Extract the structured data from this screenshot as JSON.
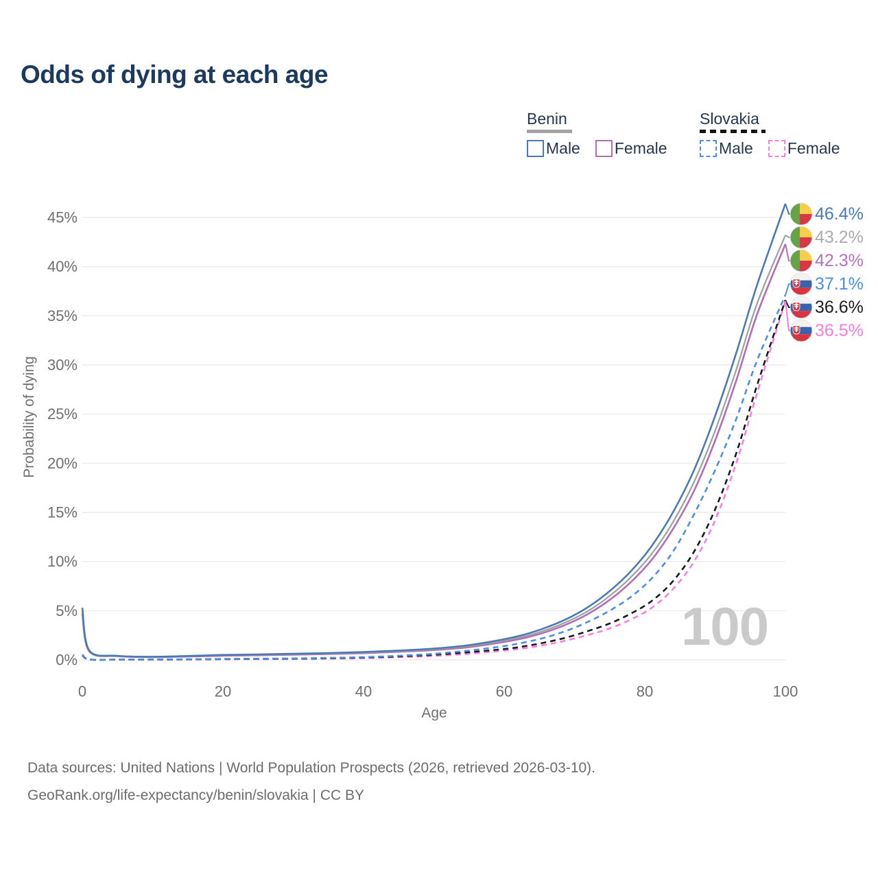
{
  "title": "Odds of dying at each age",
  "watermark": "100",
  "legend": {
    "groups": [
      {
        "country": "Benin",
        "line_style": "solid",
        "underline_color": "#a3a3a3",
        "items": [
          {
            "label": "Male",
            "color": "#4a7ab5"
          },
          {
            "label": "Female",
            "color": "#b26db5"
          }
        ]
      },
      {
        "country": "Slovakia",
        "line_style": "dashed",
        "underline_color": "#141414",
        "items": [
          {
            "label": "Male",
            "color": "#4a90e8"
          },
          {
            "label": "Female",
            "color": "#fa7de3"
          }
        ]
      }
    ]
  },
  "chart_data": {
    "type": "line",
    "title": "Odds of dying at each age",
    "xlabel": "Age",
    "ylabel": "Probability of dying",
    "xlim": [
      0,
      100
    ],
    "ylim": [
      0,
      47
    ],
    "xticks": [
      0,
      20,
      40,
      60,
      80,
      100
    ],
    "yticks": [
      "0%",
      "5%",
      "10%",
      "15%",
      "20%",
      "25%",
      "30%",
      "35%",
      "40%",
      "45%"
    ],
    "grid": "horizontal",
    "legend_position": "top-right",
    "x_ages": [
      0,
      1,
      5,
      10,
      15,
      20,
      25,
      30,
      35,
      40,
      45,
      50,
      55,
      60,
      63,
      66,
      69,
      72,
      75,
      78,
      81,
      84,
      87,
      90,
      93,
      96,
      100
    ],
    "series": [
      {
        "name": "Benin Male",
        "country": "Benin",
        "sex": "male",
        "color": "#4a7ab5",
        "dashed": false,
        "flag": "benin",
        "end_label": "46.4%",
        "label_color": "#4a7ab5",
        "values": [
          5.3,
          0.95,
          0.42,
          0.32,
          0.4,
          0.5,
          0.56,
          0.62,
          0.7,
          0.8,
          0.95,
          1.15,
          1.5,
          2.1,
          2.6,
          3.3,
          4.2,
          5.4,
          7.0,
          9.0,
          11.6,
          15.0,
          19.3,
          24.8,
          31.2,
          38.2,
          46.4
        ]
      },
      {
        "name": "Benin Both sexes",
        "country": "Benin",
        "sex": "both",
        "color": "#9e9e9e",
        "dashed": false,
        "flag": "benin",
        "end_label": "43.2%",
        "label_color": "#ababab",
        "values": [
          5.0,
          0.9,
          0.4,
          0.3,
          0.37,
          0.46,
          0.52,
          0.57,
          0.64,
          0.74,
          0.88,
          1.07,
          1.4,
          1.95,
          2.4,
          3.05,
          3.9,
          5.0,
          6.5,
          8.4,
          10.8,
          14.0,
          18.1,
          23.3,
          29.5,
          36.3,
          43.2
        ]
      },
      {
        "name": "Benin Female",
        "country": "Benin",
        "sex": "female",
        "color": "#b26db5",
        "dashed": false,
        "flag": "benin",
        "end_label": "42.3%",
        "label_color": "#b671bd",
        "values": [
          4.7,
          0.85,
          0.38,
          0.28,
          0.34,
          0.42,
          0.47,
          0.52,
          0.59,
          0.68,
          0.82,
          1.0,
          1.3,
          1.82,
          2.25,
          2.85,
          3.65,
          4.7,
          6.1,
          7.9,
          10.2,
          13.3,
          17.2,
          22.3,
          28.4,
          35.2,
          42.3
        ]
      },
      {
        "name": "Slovakia Male",
        "country": "Slovakia",
        "sex": "male",
        "color": "#4a90e8",
        "dashed": true,
        "flag": "slovakia",
        "end_label": "37.1%",
        "label_color": "#4a90e8",
        "values": [
          0.55,
          0.045,
          0.03,
          0.03,
          0.06,
          0.1,
          0.12,
          0.15,
          0.2,
          0.28,
          0.42,
          0.62,
          0.95,
          1.4,
          1.8,
          2.3,
          3.0,
          3.9,
          5.0,
          6.4,
          8.3,
          11.0,
          14.8,
          19.3,
          24.5,
          30.5,
          37.1
        ]
      },
      {
        "name": "Slovakia Both sexes",
        "country": "Slovakia",
        "sex": "both",
        "color": "#1a1a1a",
        "dashed": true,
        "flag": "slovakia",
        "end_label": "36.6%",
        "label_color": "#1d1d1d",
        "values": [
          0.5,
          0.04,
          0.025,
          0.025,
          0.05,
          0.08,
          0.1,
          0.12,
          0.16,
          0.24,
          0.35,
          0.52,
          0.78,
          1.1,
          1.4,
          1.8,
          2.3,
          2.95,
          3.7,
          4.7,
          6.0,
          8.0,
          11.0,
          15.3,
          21.0,
          28.0,
          36.6
        ]
      },
      {
        "name": "Slovakia Female",
        "country": "Slovakia",
        "sex": "female",
        "color": "#fa7de3",
        "dashed": true,
        "flag": "slovakia",
        "end_label": "36.5%",
        "label_color": "#fb7ae1",
        "values": [
          0.45,
          0.035,
          0.02,
          0.02,
          0.04,
          0.06,
          0.08,
          0.1,
          0.13,
          0.18,
          0.27,
          0.4,
          0.62,
          0.95,
          1.2,
          1.55,
          2.0,
          2.55,
          3.2,
          4.1,
          5.3,
          7.2,
          10.0,
          14.2,
          20.0,
          27.2,
          36.5
        ]
      }
    ],
    "flag_colors": {
      "benin_green": "#64a346",
      "benin_yellow": "#f6ce4b",
      "benin_red": "#d63848",
      "slovakia_white": "#f2f2f2",
      "slovakia_blue": "#3a63ad",
      "slovakia_red": "#d6363f"
    }
  },
  "footer": {
    "line1": "Data sources: United Nations | World Population Prospects (2026, retrieved 2026-03-10).",
    "line2": "GeoRank.org/life-expectancy/benin/slovakia | CC BY"
  }
}
